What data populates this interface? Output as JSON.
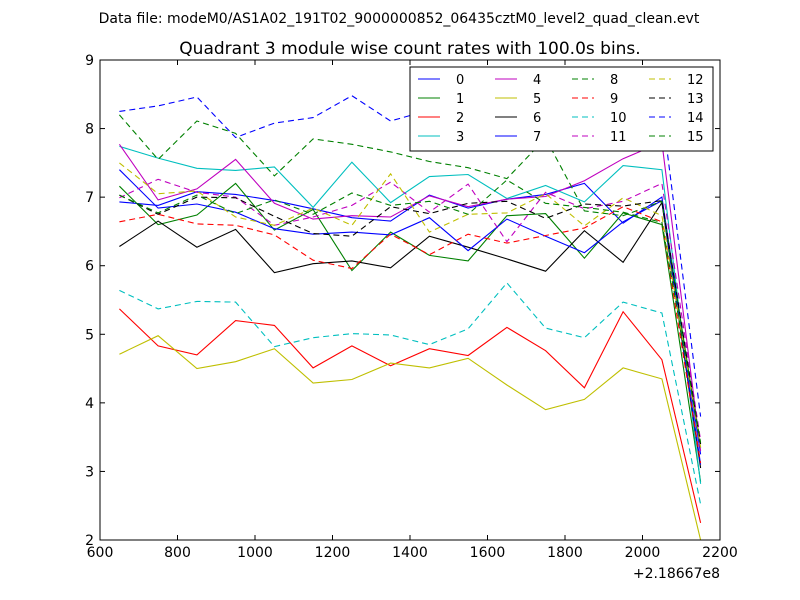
{
  "chart_data": {
    "type": "line",
    "suptitle": "Data file: modeM0/AS1A02_191T02_9000000852_06435cztM0_level2_quad_clean.evt",
    "title": "Quadrant 3 module wise count rates with 100.0s bins.",
    "xlabel": "",
    "ylabel": "",
    "x_offset_label": "+2.18667e8",
    "xlim": [
      600,
      2200
    ],
    "ylim": [
      2,
      9
    ],
    "xticks": [
      600,
      800,
      1000,
      1200,
      1400,
      1600,
      1800,
      2000,
      2200
    ],
    "yticks": [
      2,
      3,
      4,
      5,
      6,
      7,
      8,
      9
    ],
    "x": [
      650,
      750,
      850,
      950,
      1050,
      1150,
      1250,
      1350,
      1450,
      1550,
      1650,
      1750,
      1850,
      1950,
      2050,
      2150
    ],
    "legend_position": "top-right",
    "series": [
      {
        "name": "0",
        "color": "#0000ff",
        "dash": "solid",
        "values": [
          6.93,
          6.88,
          7.08,
          7.04,
          6.95,
          6.83,
          6.7,
          6.65,
          7.03,
          6.84,
          6.97,
          7.04,
          7.2,
          6.62,
          7.0,
          3.25
        ]
      },
      {
        "name": "1",
        "color": "#008000",
        "dash": "solid",
        "values": [
          7.16,
          6.6,
          6.74,
          7.2,
          6.52,
          6.82,
          5.93,
          6.49,
          6.15,
          6.07,
          6.73,
          6.76,
          6.11,
          6.77,
          6.6,
          2.85
        ]
      },
      {
        "name": "2",
        "color": "#ff0000",
        "dash": "solid",
        "values": [
          5.37,
          4.83,
          4.7,
          5.2,
          5.13,
          4.51,
          4.83,
          4.54,
          4.79,
          4.69,
          5.1,
          4.76,
          4.22,
          5.33,
          4.63,
          2.25
        ]
      },
      {
        "name": "3",
        "color": "#00bfbf",
        "dash": "solid",
        "values": [
          7.74,
          7.57,
          7.42,
          7.39,
          7.44,
          6.85,
          7.51,
          6.92,
          7.3,
          7.33,
          6.98,
          7.17,
          6.93,
          7.46,
          7.4,
          2.82
        ]
      },
      {
        "name": "4",
        "color": "#bf00bf",
        "dash": "solid",
        "values": [
          7.77,
          6.96,
          7.12,
          7.55,
          6.91,
          6.68,
          6.73,
          6.71,
          7.02,
          6.86,
          6.97,
          7.01,
          7.24,
          7.56,
          7.8,
          3.3
        ]
      },
      {
        "name": "5",
        "color": "#bfbf00",
        "dash": "solid",
        "values": [
          4.71,
          4.98,
          4.5,
          4.6,
          4.79,
          4.29,
          4.34,
          4.58,
          4.51,
          4.65,
          4.26,
          3.9,
          4.05,
          4.51,
          4.35,
          2.0
        ]
      },
      {
        "name": "6",
        "color": "#000000",
        "dash": "solid",
        "values": [
          6.28,
          6.65,
          6.27,
          6.53,
          5.9,
          6.03,
          6.07,
          5.97,
          6.43,
          6.27,
          6.1,
          5.92,
          6.51,
          6.05,
          6.92,
          3.05
        ]
      },
      {
        "name": "7",
        "color": "#0000ff",
        "dash": "solid",
        "values": [
          7.4,
          6.84,
          6.9,
          6.78,
          6.54,
          6.46,
          6.49,
          6.45,
          6.7,
          6.22,
          6.68,
          6.43,
          6.19,
          6.64,
          6.95,
          3.1
        ]
      },
      {
        "name": "8",
        "color": "#008000",
        "dash": "dashed",
        "values": [
          8.2,
          7.55,
          8.11,
          7.93,
          7.31,
          7.85,
          7.77,
          7.66,
          7.52,
          7.43,
          7.27,
          7.86,
          6.8,
          6.73,
          6.94,
          3.35
        ]
      },
      {
        "name": "9",
        "color": "#ff0000",
        "dash": "dashed",
        "values": [
          6.64,
          6.75,
          6.61,
          6.59,
          6.45,
          6.08,
          5.96,
          6.46,
          6.16,
          6.46,
          6.33,
          6.44,
          6.55,
          6.86,
          6.64,
          3.12
        ]
      },
      {
        "name": "10",
        "color": "#00bfbf",
        "dash": "dashed",
        "values": [
          5.64,
          5.37,
          5.48,
          5.47,
          4.82,
          4.95,
          5.01,
          4.99,
          4.85,
          5.08,
          5.75,
          5.09,
          4.95,
          5.47,
          5.31,
          2.52
        ]
      },
      {
        "name": "11",
        "color": "#bf00bf",
        "dash": "dashed",
        "values": [
          6.99,
          7.26,
          7.07,
          7.0,
          6.59,
          6.71,
          6.88,
          7.22,
          6.78,
          7.19,
          6.35,
          7.07,
          6.83,
          6.94,
          7.2,
          3.45
        ]
      },
      {
        "name": "12",
        "color": "#bfbf00",
        "dash": "dashed",
        "values": [
          7.5,
          7.05,
          7.09,
          6.71,
          6.59,
          6.84,
          6.59,
          7.34,
          6.49,
          6.75,
          6.77,
          7.05,
          6.58,
          6.99,
          6.73,
          3.35
        ]
      },
      {
        "name": "13",
        "color": "#000000",
        "dash": "dashed",
        "values": [
          7.03,
          6.75,
          7.0,
          6.99,
          6.72,
          6.47,
          6.43,
          6.86,
          6.76,
          6.91,
          6.94,
          6.69,
          6.9,
          6.87,
          6.95,
          3.4
        ]
      },
      {
        "name": "14",
        "color": "#0000ff",
        "dash": "dashed",
        "values": [
          8.25,
          8.33,
          8.46,
          7.87,
          8.08,
          8.16,
          8.48,
          8.11,
          8.27,
          7.7,
          8.37,
          8.4,
          8.07,
          8.24,
          8.28,
          3.8
        ]
      },
      {
        "name": "15",
        "color": "#008000",
        "dash": "dashed",
        "values": [
          7.03,
          6.77,
          7.03,
          6.76,
          6.96,
          6.75,
          7.06,
          6.88,
          6.94,
          6.75,
          7.25,
          6.91,
          6.85,
          6.78,
          6.63,
          3.42
        ]
      }
    ]
  }
}
